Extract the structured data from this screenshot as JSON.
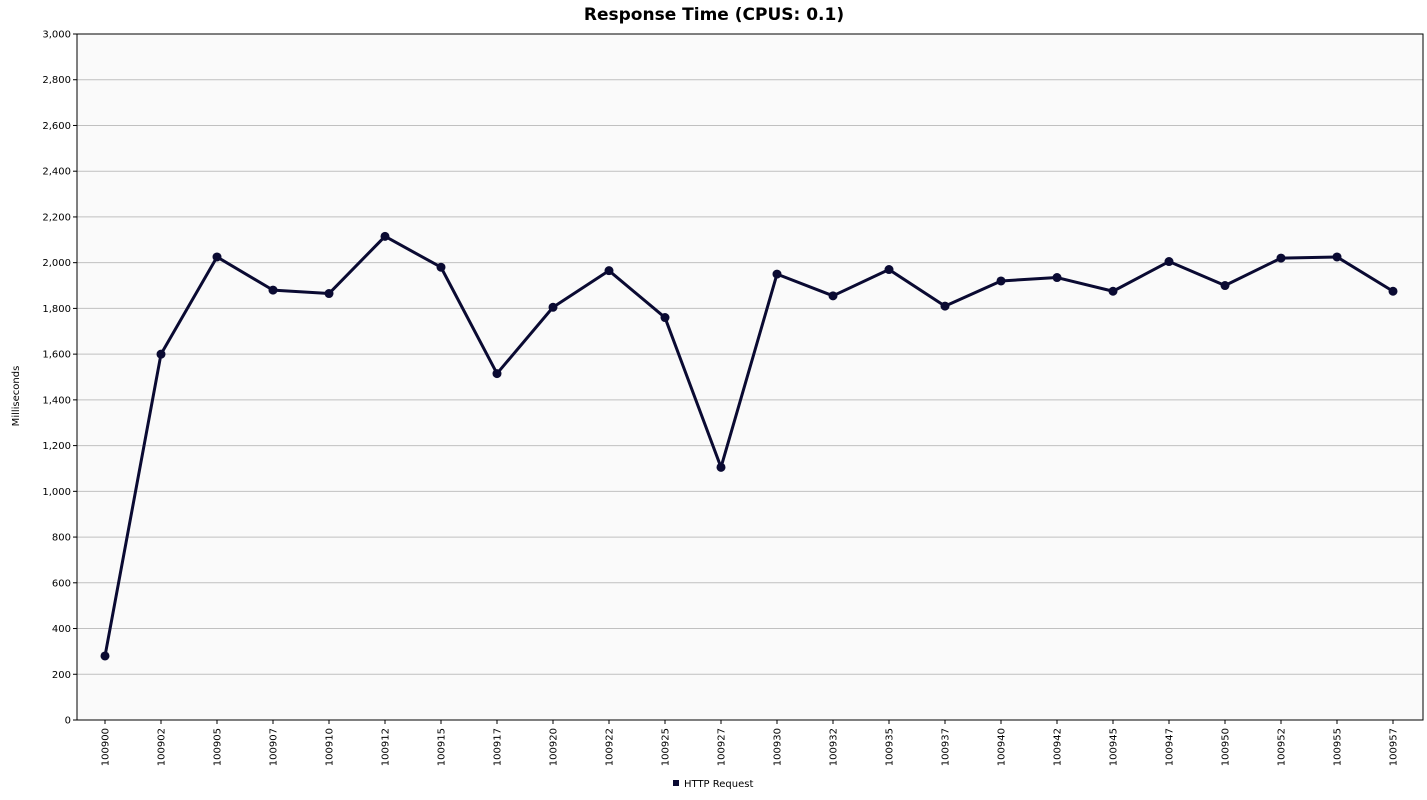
{
  "chart_data": {
    "type": "line",
    "title": "Response Time (CPUS: 0.1)",
    "xlabel": "",
    "ylabel": "Milliseconds",
    "ylim": [
      0,
      3000
    ],
    "yticks": [
      0,
      200,
      400,
      600,
      800,
      1000,
      1200,
      1400,
      1600,
      1800,
      2000,
      2200,
      2400,
      2600,
      2800,
      3000
    ],
    "ytick_labels": [
      "0",
      "200",
      "400",
      "600",
      "800",
      "1,000",
      "1,200",
      "1,400",
      "1,600",
      "1,800",
      "2,000",
      "2,200",
      "2,400",
      "2,600",
      "2,800",
      "3,000"
    ],
    "grid": true,
    "legend_position": "bottom-center",
    "categories": [
      "100900",
      "100902",
      "100905",
      "100907",
      "100910",
      "100912",
      "100915",
      "100917",
      "100920",
      "100922",
      "100925",
      "100927",
      "100930",
      "100932",
      "100935",
      "100937",
      "100940",
      "100942",
      "100945",
      "100947",
      "100950",
      "100952",
      "100955",
      "100957"
    ],
    "series": [
      {
        "name": "HTTP Request",
        "color": "#0a0a32",
        "values": [
          280,
          1600,
          2025,
          1880,
          1865,
          2115,
          1980,
          1515,
          1805,
          1965,
          1760,
          1105,
          1950,
          1855,
          1970,
          1810,
          1920,
          1935,
          1875,
          2005,
          1900,
          2020,
          2025,
          1875
        ]
      }
    ]
  }
}
